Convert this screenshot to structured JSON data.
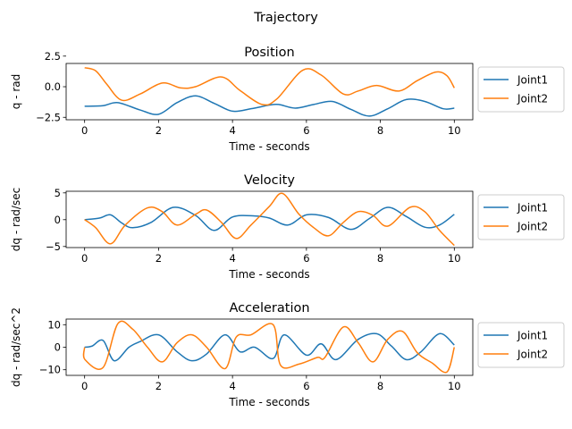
{
  "figure": {
    "title": "Trajectory"
  },
  "chart_data": [
    {
      "type": "line",
      "title": "Position",
      "xlabel": "Time - seconds",
      "ylabel": "q - rad",
      "xlim": [
        -0.5,
        10.5
      ],
      "ylim": [
        -2.7,
        1.9
      ],
      "xticks": [
        0,
        2,
        4,
        6,
        8,
        10
      ],
      "yticks": [
        -2.5,
        0.0,
        2.5
      ],
      "yticklabels": [
        "−2.5",
        "0.0",
        "2.5"
      ],
      "grid": false,
      "legend_position": "outside-right",
      "series": [
        {
          "name": "Joint1",
          "color": "#1f77b4",
          "x": [
            0,
            0.5,
            0.9,
            1.5,
            2.0,
            2.5,
            3.0,
            3.5,
            4.0,
            4.5,
            5.0,
            5.25,
            5.7,
            6.2,
            6.7,
            7.2,
            7.7,
            8.2,
            8.7,
            9.2,
            9.7,
            10.0
          ],
          "y": [
            -1.6,
            -1.55,
            -1.3,
            -1.9,
            -2.25,
            -1.3,
            -0.75,
            -1.35,
            -2.0,
            -1.8,
            -1.5,
            -1.45,
            -1.75,
            -1.45,
            -1.2,
            -1.85,
            -2.4,
            -1.8,
            -1.05,
            -1.2,
            -1.8,
            -1.75
          ]
        },
        {
          "name": "Joint2",
          "color": "#ff7f0e",
          "x": [
            0,
            0.3,
            0.6,
            1.0,
            1.5,
            2.1,
            2.6,
            3.0,
            3.7,
            4.2,
            4.8,
            5.2,
            5.9,
            6.4,
            7.0,
            7.4,
            7.9,
            8.5,
            9.0,
            9.5,
            9.8,
            10.0
          ],
          "y": [
            1.55,
            1.3,
            0.2,
            -1.1,
            -0.6,
            0.3,
            -0.1,
            0.0,
            0.8,
            -0.3,
            -1.45,
            -1.0,
            1.35,
            0.95,
            -0.6,
            -0.35,
            0.1,
            -0.35,
            0.5,
            1.2,
            0.9,
            -0.1
          ]
        }
      ]
    },
    {
      "type": "line",
      "title": "Velocity",
      "xlabel": "Time - seconds",
      "ylabel": "dq - rad/sec",
      "xlim": [
        -0.5,
        10.5
      ],
      "ylim": [
        -5.2,
        5.3
      ],
      "xticks": [
        0,
        2,
        4,
        6,
        8,
        10
      ],
      "yticks": [
        -5,
        0,
        5
      ],
      "yticklabels": [
        "−5",
        "0",
        "5"
      ],
      "grid": false,
      "legend_position": "outside-right",
      "series": [
        {
          "name": "Joint1",
          "color": "#1f77b4",
          "x": [
            0,
            0.4,
            0.7,
            1.0,
            1.3,
            1.8,
            2.4,
            3.0,
            3.5,
            4.0,
            4.6,
            5.0,
            5.5,
            6.0,
            6.6,
            7.2,
            7.7,
            8.2,
            8.7,
            9.2,
            9.6,
            10.0
          ],
          "y": [
            0,
            0.3,
            0.9,
            -0.6,
            -1.5,
            -0.5,
            2.3,
            0.8,
            -2.0,
            0.5,
            0.7,
            0.3,
            -1.0,
            0.9,
            0.4,
            -1.8,
            0.2,
            2.3,
            0.6,
            -1.4,
            -1.0,
            1.0
          ]
        },
        {
          "name": "Joint2",
          "color": "#ff7f0e",
          "x": [
            0,
            0.3,
            0.7,
            1.1,
            1.7,
            2.1,
            2.5,
            3.0,
            3.3,
            3.7,
            4.1,
            4.5,
            5.0,
            5.35,
            5.8,
            6.2,
            6.6,
            7.0,
            7.4,
            7.8,
            8.2,
            8.8,
            9.2,
            9.6,
            10.0
          ],
          "y": [
            0,
            -1.5,
            -4.5,
            -1.0,
            2.2,
            1.5,
            -1.0,
            1.0,
            1.8,
            -0.5,
            -3.5,
            -1.0,
            2.5,
            4.9,
            1.0,
            -1.5,
            -3.0,
            -0.5,
            1.5,
            0.8,
            -1.2,
            2.3,
            1.5,
            -2.0,
            -4.8
          ]
        }
      ]
    },
    {
      "type": "line",
      "title": "Acceleration",
      "xlabel": "Time - seconds",
      "ylabel": "dq - rad/sec^2",
      "xlim": [
        -0.5,
        10.5
      ],
      "ylim": [
        -12.5,
        12.5
      ],
      "xticks": [
        0,
        2,
        4,
        6,
        8,
        10
      ],
      "yticks": [
        -10,
        0,
        10
      ],
      "yticklabels": [
        "−10",
        "0",
        "10"
      ],
      "grid": false,
      "legend_position": "outside-right",
      "series": [
        {
          "name": "Joint1",
          "color": "#1f77b4",
          "x": [
            0,
            0.2,
            0.5,
            0.8,
            1.2,
            1.5,
            2.0,
            2.5,
            2.9,
            3.3,
            3.8,
            4.2,
            4.6,
            5.1,
            5.4,
            6.0,
            6.4,
            6.8,
            7.4,
            7.9,
            8.3,
            8.7,
            9.1,
            9.6,
            10.0
          ],
          "y": [
            0,
            0.5,
            3.0,
            -6.0,
            0.0,
            2.5,
            5.5,
            -2.0,
            -6.0,
            -3.0,
            5.5,
            -2.0,
            0.0,
            -5.0,
            5.5,
            -3.5,
            1.5,
            -5.5,
            3.5,
            6.0,
            0.5,
            -5.5,
            -2.0,
            6.0,
            1.0
          ]
        },
        {
          "name": "Joint2",
          "color": "#ff7f0e",
          "x": [
            0,
            0.01,
            0.5,
            0.9,
            1.3,
            1.7,
            2.1,
            2.5,
            2.9,
            3.3,
            3.8,
            4.1,
            4.5,
            5.1,
            5.3,
            5.8,
            6.3,
            6.5,
            7.0,
            7.4,
            7.8,
            8.2,
            8.6,
            9.0,
            9.4,
            9.8,
            10.0
          ],
          "y": [
            0,
            -5.5,
            -9.0,
            10.5,
            8.0,
            0.0,
            -6.5,
            2.0,
            5.5,
            0.0,
            -9.5,
            4.5,
            5.5,
            10.0,
            -8.0,
            -7.5,
            -4.5,
            -4.5,
            9.0,
            2.0,
            -6.5,
            3.5,
            7.0,
            -2.5,
            -7.0,
            -11.0,
            0.0
          ]
        }
      ]
    }
  ]
}
